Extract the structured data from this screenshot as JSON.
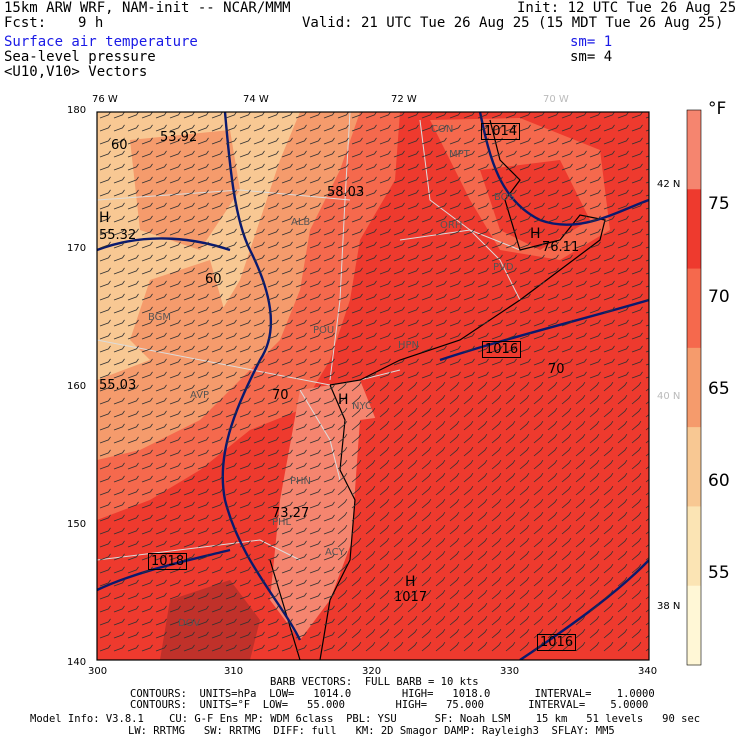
{
  "header": {
    "title_left": "15km ARW WRF, NAM-init -- NCAR/MMM",
    "init": "Init: 12 UTC Tue 26 Aug 25",
    "fcst_label": "Fcst:",
    "fcst_value": "9 h",
    "valid": "Valid: 21 UTC Tue 26 Aug 25 (15 MDT Tue 26 Aug 25)",
    "field1": "Surface air temperature",
    "field1_sm": "sm= 1",
    "field2": "Sea-level pressure",
    "field2_sm": "sm= 4",
    "field3": "<U10,V10> Vectors"
  },
  "axes": {
    "top_lon": [
      "76 W",
      "74 W",
      "72 W",
      "70 W"
    ],
    "right_lat": [
      "42 N",
      "40 N",
      "38 N"
    ],
    "left_y": [
      "180",
      "170",
      "160",
      "150",
      "140"
    ],
    "bottom_x": [
      "300",
      "310",
      "320",
      "330",
      "340"
    ]
  },
  "colorbar": {
    "unit": "°F",
    "labels": [
      "75",
      "70",
      "65",
      "60",
      "55"
    ],
    "colors": [
      "#f5856f",
      "#ee3a2e",
      "#f5694d",
      "#f59b6c",
      "#f8c893",
      "#fbe4b4",
      "#fff7d6"
    ]
  },
  "map_labels": {
    "temps": [
      "53.92",
      "58.03",
      "55.32",
      "55.03",
      "76.11",
      "73.27",
      "60",
      "60",
      "70",
      "70"
    ],
    "highs": [
      "H",
      "H",
      "H",
      "H"
    ],
    "stations": [
      "CON",
      "MPT",
      "BOS",
      "ALB",
      "ORH",
      "BGM",
      "POU",
      "HPN",
      "AVP",
      "NYC",
      "PHL",
      "PHN",
      "ACY",
      "DOV",
      "PVD"
    ],
    "isobars": [
      "1014",
      "1016",
      "1018",
      "1016",
      "1017"
    ]
  },
  "footer": {
    "barb": "BARB VECTORS:  FULL BARB = 10 kts",
    "contours1": "CONTOURS:  UNITS=hPa  LOW=   1014.0        HIGH=   1018.0       INTERVAL=    1.0000",
    "contours2": "CONTOURS:  UNITS=°F  LOW=   55.000        HIGH=   75.000       INTERVAL=    5.0000",
    "model1": "Model Info: V3.8.1    CU: G-F Ens MP: WDM 6class  PBL: YSU      SF: Noah LSM    15 km   51 levels   90 sec",
    "model2": "LW: RRTMG   SW: RRTMG  DIFF: full   KM: 2D Smagor DAMP: Rayleigh3  SFLAY: MM5"
  }
}
